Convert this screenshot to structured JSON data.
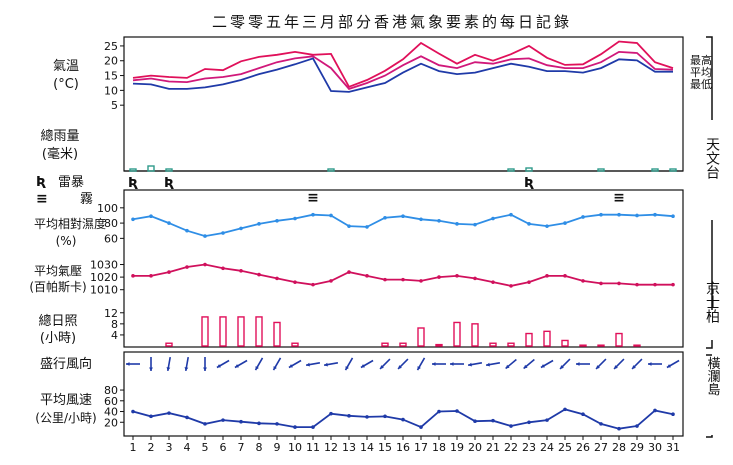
{
  "title": "二零零五年三月部分香港氣象要素的每日記錄",
  "colors": {
    "max_temp": "#e0105a",
    "mean_temp": "#d0187a",
    "min_temp": "#1f3aa8",
    "humidity": "#2f8ee6",
    "pressure": "#d0105c",
    "sunshine": "#e0105a",
    "rain": "#2e9a8a",
    "wind": "#1f3aa8",
    "axis": "#111111"
  },
  "side_labels": {
    "observatory": "天文台",
    "kings_park": "京士柏",
    "waglan": "橫瀾島"
  },
  "chart_data": {
    "type": "line",
    "days": [
      "1",
      "2",
      "3",
      "4",
      "5",
      "6",
      "7",
      "8",
      "9",
      "10",
      "11",
      "12",
      "13",
      "14",
      "15",
      "16",
      "17",
      "18",
      "19",
      "20",
      "21",
      "22",
      "23",
      "24",
      "25",
      "26",
      "27",
      "28",
      "29",
      "30",
      "31"
    ],
    "temperature": {
      "label_line1": "氣溫",
      "label_line2": "(°C)",
      "ticks": [
        "25",
        "20",
        "15",
        "10",
        "5"
      ],
      "ylim": [
        0,
        27
      ],
      "series": [
        {
          "name": "最高",
          "values": [
            14.2,
            15,
            14.5,
            14.2,
            17.2,
            16.8,
            19.8,
            21.3,
            22,
            23,
            22,
            22.3,
            11.2,
            13.5,
            16.6,
            20.5,
            26,
            22.4,
            19,
            22,
            20,
            22.2,
            25,
            21,
            18.6,
            18.8,
            22.2,
            26.5,
            26,
            19.5,
            17.5
          ]
        },
        {
          "name": "平均",
          "values": [
            13.4,
            14,
            13,
            12.8,
            14,
            14.5,
            15.5,
            17.5,
            19.5,
            20.8,
            21.5,
            17.5,
            10.5,
            12.5,
            15,
            18.5,
            21.5,
            18.5,
            17.5,
            19.5,
            19,
            20.5,
            20.8,
            18.5,
            17.5,
            17.5,
            19.5,
            23,
            22.6,
            17.2,
            17
          ]
        },
        {
          "name": "最低",
          "values": [
            12.3,
            12,
            10.5,
            10.5,
            11,
            12,
            13.5,
            15.5,
            17,
            18.8,
            20.8,
            9.8,
            9.5,
            11,
            12.5,
            16,
            19,
            16.5,
            15.5,
            16,
            17.5,
            19,
            18,
            16.5,
            16.5,
            16,
            17.5,
            20.5,
            20.1,
            16.3,
            16.3
          ]
        }
      ]
    },
    "rainfall": {
      "label_line1": "總雨量",
      "label_line2": "(毫米)",
      "values": [
        0.2,
        0.5,
        0.1,
        0,
        0,
        0,
        0,
        0,
        0,
        0,
        0,
        0.2,
        0,
        0,
        0,
        0,
        0,
        0,
        0,
        0,
        0,
        0.2,
        0.3,
        0,
        0,
        0,
        0.2,
        0,
        0,
        0.1,
        0.1
      ]
    },
    "weather_legend": {
      "thunder_label": "雷暴",
      "fog_label": "霧",
      "thunder_symbol": "Ʀ",
      "fog_symbol": "≡",
      "thunder_days": [
        "1",
        "3",
        "23"
      ],
      "fog_days": [
        "11",
        "28"
      ]
    },
    "humidity": {
      "label_line1": "平均相對濕度",
      "label_line2": "(%)",
      "ticks": [
        "100",
        "80",
        "60"
      ],
      "ylim": [
        50,
        105
      ],
      "values": [
        85,
        89,
        80,
        70,
        63,
        67,
        73,
        79,
        83,
        86,
        91,
        90,
        76,
        75,
        87,
        89,
        85,
        83,
        79,
        78,
        86,
        91,
        79,
        76,
        80,
        88,
        91,
        91,
        90,
        91,
        89
      ]
    },
    "pressure": {
      "label_line1": "平均氣壓",
      "label_line2": "(百帕斯卡)",
      "ticks": [
        "1030",
        "1020",
        "1010"
      ],
      "ylim": [
        1005,
        1032
      ],
      "values": [
        1021,
        1021,
        1024,
        1028,
        1030,
        1027,
        1025,
        1022,
        1019,
        1016,
        1014,
        1017,
        1024,
        1021,
        1018,
        1018,
        1017,
        1020,
        1021,
        1019,
        1016,
        1013,
        1016,
        1021,
        1021,
        1017,
        1015,
        1015,
        1014,
        1014,
        1014
      ]
    },
    "sunshine": {
      "label_line1": "總日照",
      "label_line2": "(小時)",
      "ticks": [
        "12",
        "8",
        "4"
      ],
      "ylim": [
        0,
        13
      ],
      "values": [
        0,
        0,
        1,
        0,
        10.5,
        10.5,
        10.5,
        10.5,
        8.5,
        1,
        0,
        0,
        0,
        0,
        1,
        1,
        6.5,
        0.5,
        8.5,
        8,
        1,
        1,
        4.5,
        5.3,
        2,
        0.3,
        0.3,
        4.5,
        0.3,
        0,
        0
      ]
    },
    "wind_direction": {
      "label": "盛行風向",
      "degrees": [
        90,
        0,
        10,
        10,
        0,
        60,
        60,
        30,
        30,
        60,
        80,
        80,
        30,
        60,
        45,
        45,
        30,
        90,
        90,
        80,
        80,
        50,
        50,
        60,
        45,
        90,
        45,
        45,
        45,
        90,
        60
      ]
    },
    "wind_speed": {
      "label_line1": "平均風速",
      "label_line2": "(公里/小時)",
      "ticks": [
        "80",
        "60",
        "40",
        "20"
      ],
      "ylim": [
        0,
        95
      ],
      "values": [
        40,
        31,
        37,
        29,
        17,
        24,
        21,
        18,
        17,
        11,
        11,
        36,
        32,
        30,
        31,
        25,
        11,
        40,
        41,
        22,
        23,
        13,
        20,
        24,
        44,
        35,
        17,
        8,
        13,
        42,
        35
      ]
    }
  }
}
